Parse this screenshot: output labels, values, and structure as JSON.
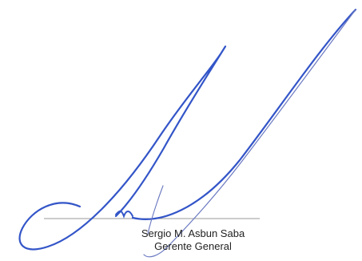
{
  "signature": {
    "signer_name": "Sergio M. Asbun Saba",
    "signer_title": "Gerente General",
    "ink_color": "#3355c8",
    "line_color": "#9a9a9a"
  }
}
